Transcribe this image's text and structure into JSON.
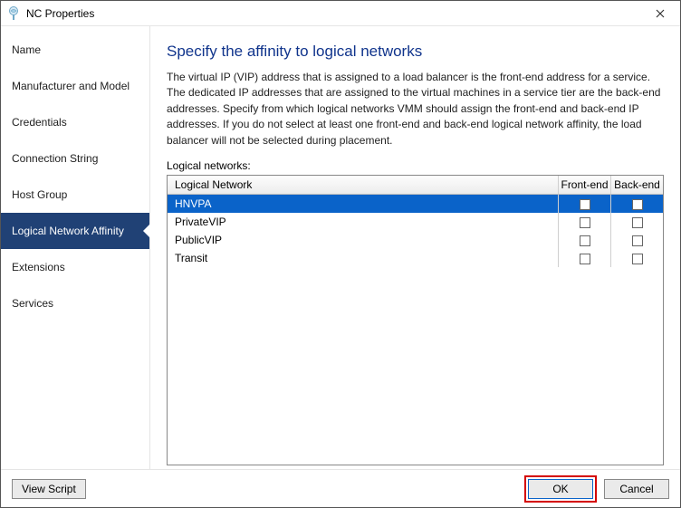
{
  "window": {
    "title": "NC Properties"
  },
  "sidebar": {
    "items": [
      {
        "label": "Name"
      },
      {
        "label": "Manufacturer and Model"
      },
      {
        "label": "Credentials"
      },
      {
        "label": "Connection String"
      },
      {
        "label": "Host Group"
      },
      {
        "label": "Logical Network Affinity"
      },
      {
        "label": "Extensions"
      },
      {
        "label": "Services"
      }
    ],
    "selected_index": 5
  },
  "main": {
    "heading": "Specify the affinity to logical networks",
    "description": "The virtual IP (VIP) address that is assigned to a load balancer is the front-end address for a service. The dedicated IP addresses that are assigned to the virtual machines in a service tier are the back-end addresses. Specify from which logical networks VMM should assign the front-end and back-end IP addresses. If you do not select at least one front-end and back-end logical network affinity, the load balancer will not be selected during placement.",
    "list_label": "Logical networks:",
    "columns": {
      "network": "Logical Network",
      "frontend": "Front-end",
      "backend": "Back-end"
    },
    "rows": [
      {
        "name": "HNVPA",
        "frontend": false,
        "backend": false,
        "selected": true
      },
      {
        "name": "PrivateVIP",
        "frontend": false,
        "backend": false,
        "selected": false
      },
      {
        "name": "PublicVIP",
        "frontend": false,
        "backend": false,
        "selected": false
      },
      {
        "name": "Transit",
        "frontend": false,
        "backend": false,
        "selected": false
      }
    ]
  },
  "footer": {
    "view_script": "View Script",
    "ok": "OK",
    "cancel": "Cancel"
  },
  "colors": {
    "heading": "#10348c",
    "nav_selected_bg": "#204175",
    "row_selected_bg": "#0a63c9",
    "ok_highlight_border": "#d40000"
  }
}
